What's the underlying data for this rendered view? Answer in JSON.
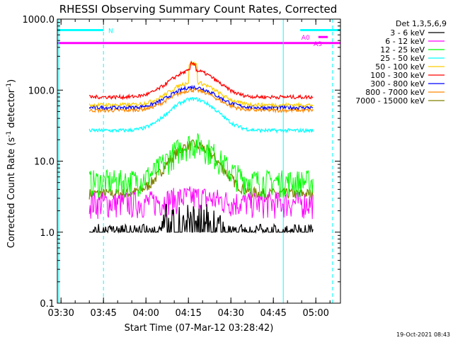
{
  "chart_data": {
    "type": "line",
    "title": "RHESSI Observing Summary Count Rates, Corrected",
    "xlabel": "Start Time (07-Mar-12 03:28:42)",
    "ylabel": "Corrected Count Rate (s",
    "ylabel_sup": "-1",
    "ylabel_mid": " detector",
    "ylabel_sup2": "-1",
    "ylabel_end": ")",
    "y_scale": "log",
    "ylim": [
      0.1,
      1000
    ],
    "xlim_minutes": [
      0,
      100
    ],
    "x_ticks": [
      {
        "label": "03:30",
        "min": 1.3
      },
      {
        "label": "03:45",
        "min": 16.3
      },
      {
        "label": "04:00",
        "min": 31.3
      },
      {
        "label": "04:15",
        "min": 46.3
      },
      {
        "label": "04:30",
        "min": 61.3
      },
      {
        "label": "04:45",
        "min": 76.3
      },
      {
        "label": "05:00",
        "min": 91.3
      }
    ],
    "y_ticks": [
      {
        "label": "0.1",
        "value": 0.1
      },
      {
        "label": "1.0",
        "value": 1
      },
      {
        "label": "10.0",
        "value": 10
      },
      {
        "label": "100.0",
        "value": 100
      },
      {
        "label": "1000.0",
        "value": 1000
      }
    ],
    "legend_title": "Det 1,3,5,6,9",
    "legend_location": "top-right",
    "series": [
      {
        "name": "3 - 6 keV",
        "color": "#000000",
        "kind": "sparse",
        "base": 1.0,
        "peak": 3.0
      },
      {
        "name": "6 - 12 keV",
        "color": "#ff00ff",
        "kind": "noisy",
        "base": 2.5,
        "peak": 3.0
      },
      {
        "name": "12 - 25 keV",
        "color": "#00ff00",
        "kind": "noisy",
        "base": 5.0,
        "peak": 17.0
      },
      {
        "name": "25 - 50 keV",
        "color": "#00ffff",
        "kind": "flare",
        "base": 27.0,
        "peak": 75.0
      },
      {
        "name": "50 - 100 keV",
        "color": "#ffcc00",
        "kind": "flare",
        "base": 62.0,
        "peak": 130.0
      },
      {
        "name": "100 - 300 keV",
        "color": "#ff0000",
        "kind": "flare",
        "base": 80.0,
        "peak": 190.0
      },
      {
        "name": "300 - 800 keV",
        "color": "#0000ff",
        "kind": "flare",
        "base": 57.0,
        "peak": 110.0
      },
      {
        "name": "800 - 7000 keV",
        "color": "#ff8800",
        "kind": "flare",
        "base": 52.0,
        "peak": 100.0
      },
      {
        "name": "7000 - 15000 keV",
        "color": "#808000",
        "kind": "smooth",
        "base": 3.5,
        "peak": 17.0
      }
    ],
    "data_range_minutes": [
      11.3,
      90.5
    ],
    "flare_peak_minute": 48.0,
    "flags": [
      {
        "label": "N",
        "color": "#00ffff",
        "start_min": 0,
        "end_min": 16.3,
        "value": 700
      },
      {
        "label": "",
        "color": "#00ffff",
        "start_min": 85.8,
        "end_min": 100,
        "value": 700
      },
      {
        "label": "A0",
        "color": "#ff00ff",
        "start_min": 92.2,
        "end_min": 95.5,
        "value": 560
      },
      {
        "label": "A3",
        "color": "#ff00ff",
        "start_min": 0,
        "end_min": 100,
        "value": 460
      }
    ],
    "vertical_lines": [
      {
        "min": 0.5,
        "color": "#00ffff",
        "style": "solid"
      },
      {
        "min": 16.3,
        "color": "#00ffff",
        "style": "dashed"
      },
      {
        "min": 79.8,
        "color": "#00ffff",
        "style": "solid"
      },
      {
        "min": 97.2,
        "color": "#00ffff",
        "style": "dashed"
      }
    ],
    "footer_date": "19-Oct-2021 08:43"
  }
}
